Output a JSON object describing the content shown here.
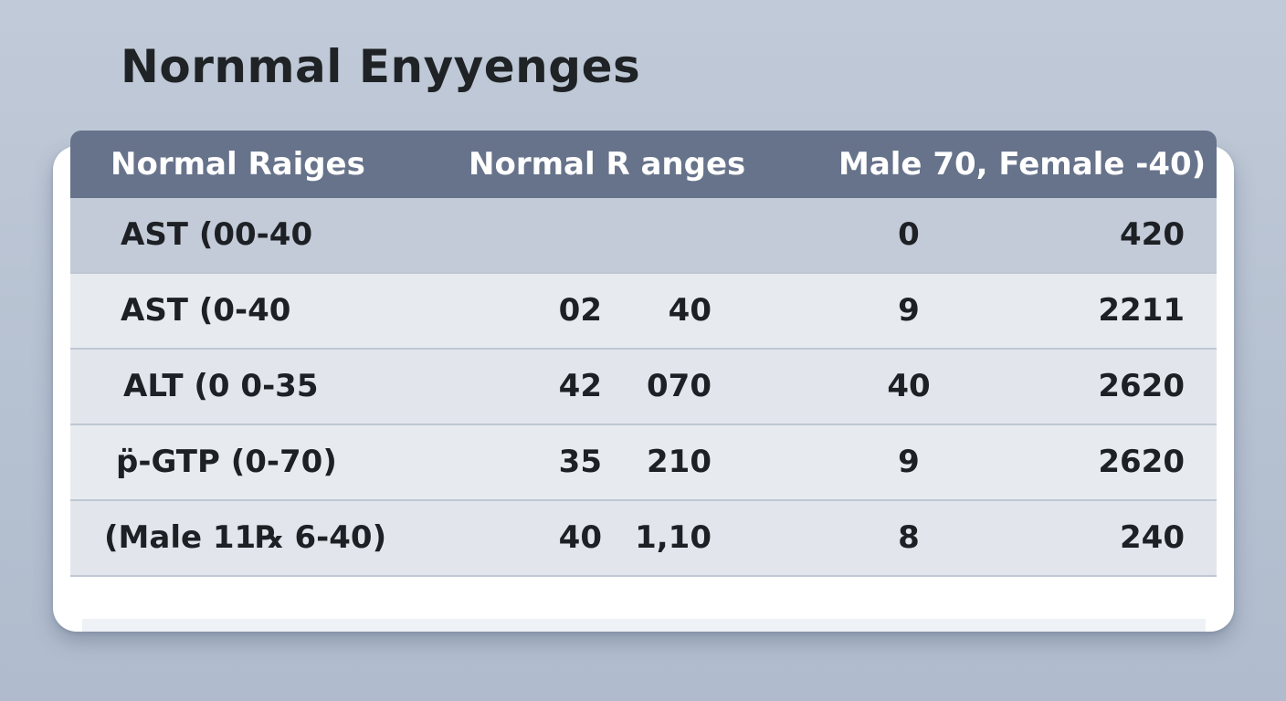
{
  "title": "Nornmal Enyyenges",
  "table": {
    "headers": [
      "Normal Raiges",
      "Normal R anges",
      "Male 70, Female -40)"
    ],
    "rows": [
      [
        "AST (00-40",
        "",
        "",
        "0",
        "420"
      ],
      [
        "AST (0-40",
        "02",
        "40",
        "9",
        "2211"
      ],
      [
        "ALT (0  0-35",
        "42",
        "070",
        "40",
        "2620"
      ],
      [
        "p̈-GTP (0-70)",
        "35",
        "210",
        "9",
        "2620"
      ],
      [
        "(Male 11℞ 6-40)",
        "40",
        "1,10",
        "8",
        "240"
      ]
    ]
  },
  "colors": {
    "background": "#bac4d3",
    "header": "#67738b",
    "first_row": "#c3cbd8",
    "row": "#e5e9ee",
    "text": "#1d2024"
  }
}
